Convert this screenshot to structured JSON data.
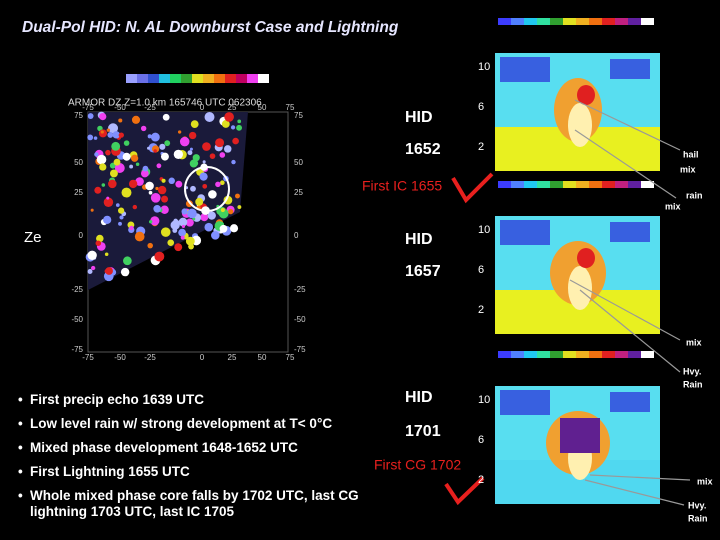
{
  "title": "Dual-Pol HID: N. AL Downburst Case and Lightning",
  "radar": {
    "label": "ARMOR   DZ   Z=1.0 km  165746 UTC  062306",
    "xticks": [
      "-75",
      "-50",
      "-25",
      "0",
      "25",
      "50",
      "75"
    ],
    "yticks": [
      "75",
      "50",
      "25",
      "0",
      "-25",
      "-50",
      "-75"
    ],
    "symbol": "Ze"
  },
  "panels": [
    {
      "title": "HID",
      "time": "1652",
      "heights": [
        "10",
        "6",
        "2"
      ]
    },
    {
      "title": "HID",
      "time": "1657",
      "heights": [
        "10",
        "6",
        "2"
      ]
    },
    {
      "title": "HID",
      "time": "1701",
      "heights": [
        "10",
        "6",
        "2"
      ]
    }
  ],
  "events": [
    "First IC 1655",
    "First CG 1702"
  ],
  "annotations": [
    "hail",
    "mix",
    "rain",
    "mix",
    "mix",
    "Hvy.",
    "Rain",
    "mix",
    "Hvy.",
    "Rain"
  ],
  "bullets": [
    "First precip echo 1639 UTC",
    "Low level rain w/ strong development at T< 0°C",
    "Mixed phase development 1648-1652 UTC",
    "First Lightning 1655 UTC",
    "Whole mixed phase core falls by 1702 UTC, last CG lightning 1703 UTC, last IC 1705"
  ]
}
